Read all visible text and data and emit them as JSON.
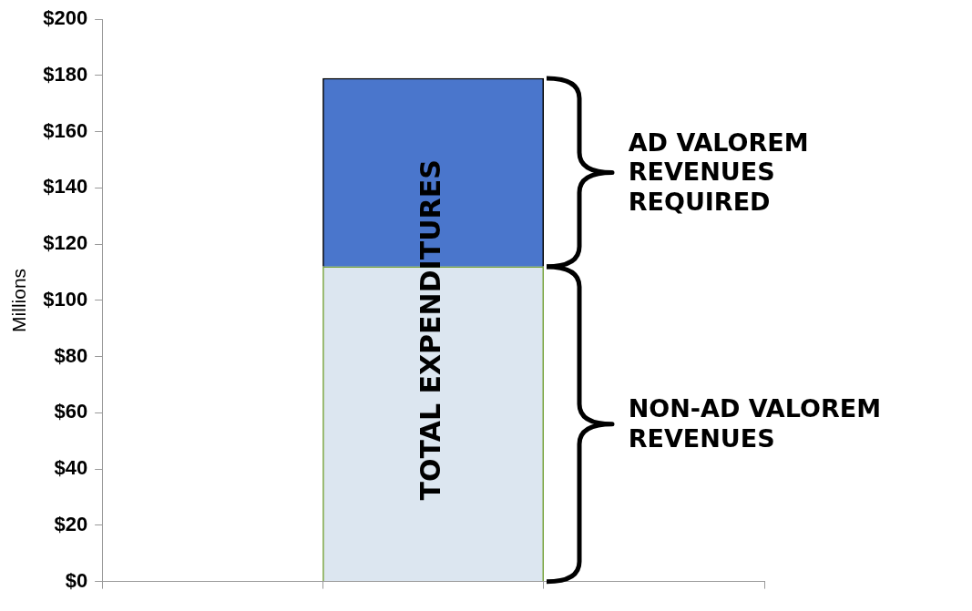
{
  "chart_data": {
    "type": "bar",
    "stacked": true,
    "ylabel": "Millions",
    "categories": [
      null,
      null,
      null
    ],
    "series": [
      {
        "color": "#dce6f0",
        "values": [
          null,
          112,
          null
        ]
      },
      {
        "color": "#4a76cc",
        "values": [
          null,
          67,
          null
        ]
      }
    ],
    "ylim": [
      0,
      200
    ],
    "yticks": [
      {
        "value": 0,
        "label": "$0"
      },
      {
        "value": 20,
        "label": "$20"
      },
      {
        "value": 40,
        "label": "$40"
      },
      {
        "value": 60,
        "label": "$60"
      },
      {
        "value": 80,
        "label": "$80"
      },
      {
        "value": 100,
        "label": "$100"
      },
      {
        "value": 120,
        "label": "$120"
      },
      {
        "value": 140,
        "label": "$140"
      },
      {
        "value": 160,
        "label": "$160"
      },
      {
        "value": 180,
        "label": "$180"
      },
      {
        "value": 200,
        "label": "$200"
      }
    ],
    "grid": false,
    "legend": false,
    "annotations": [
      "TOTAL EXPENDITURES",
      "AD VALOREM REVENUES REQUIRED",
      "NON-AD VALOREM REVENUES"
    ]
  }
}
